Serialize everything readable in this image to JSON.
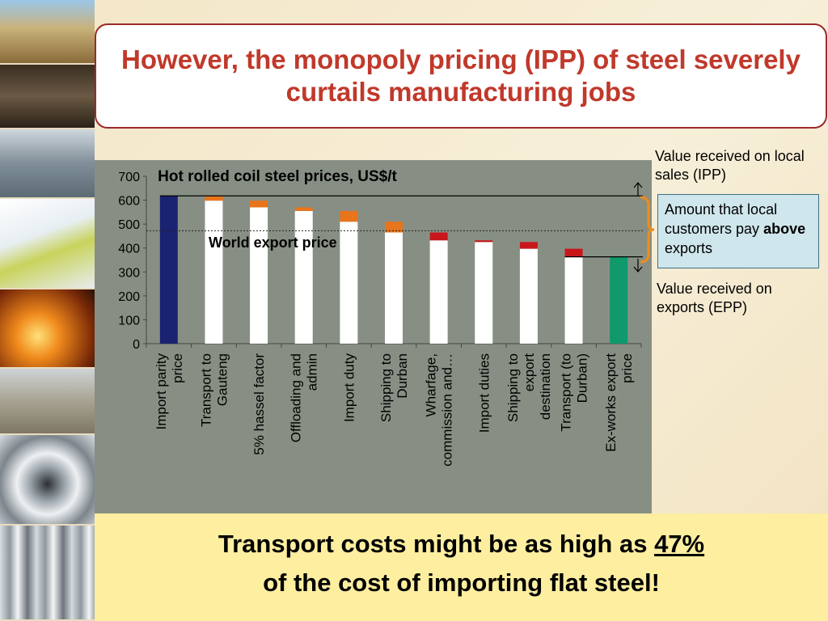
{
  "title": "However, the monopoly pricing (IPP) of steel severely curtails manufacturing jobs",
  "annotations": {
    "ipp_label": "Value received on local sales (IPP)",
    "amount_box": {
      "prefix": "Amount that local customers pay",
      "emphasis": "above",
      "suffix": "exports"
    },
    "epp_label": "Value received on exports (EPP)"
  },
  "callout": {
    "line1_prefix": "Transport costs might be as high as",
    "line1_percent": "47%",
    "line2": "of the cost of importing flat steel!"
  },
  "chart_data": {
    "type": "bar",
    "title": "Hot rolled coil steel prices, US$/t",
    "ylim": [
      0,
      700
    ],
    "yticks": [
      0,
      100,
      200,
      300,
      400,
      500,
      600,
      700
    ],
    "categories": [
      "Import parity price",
      "Transport to Gauteng",
      "5% hassel factor",
      "Offloading and admin",
      "Import duty",
      "Shipping to Durban",
      "Wharfage, commission and…",
      "Import duties",
      "Shipping to export destination",
      "Transport  (to Durban)",
      "Ex-works export price"
    ],
    "bars": [
      {
        "base": 0,
        "value": 618,
        "kind": "total"
      },
      {
        "base": 598,
        "value": 20,
        "kind": "increase"
      },
      {
        "base": 570,
        "value": 28,
        "kind": "increase"
      },
      {
        "base": 555,
        "value": 15,
        "kind": "increase"
      },
      {
        "base": 510,
        "value": 45,
        "kind": "increase"
      },
      {
        "base": 465,
        "value": 45,
        "kind": "increase"
      },
      {
        "base": 432,
        "value": 33,
        "kind": "decrease"
      },
      {
        "base": 425,
        "value": 7,
        "kind": "decrease"
      },
      {
        "base": 397,
        "value": 28,
        "kind": "decrease"
      },
      {
        "base": 363,
        "value": 34,
        "kind": "decrease"
      },
      {
        "base": 0,
        "value": 363,
        "kind": "final"
      }
    ],
    "reference_line": {
      "label": "World export price",
      "value": 472
    },
    "ipp_level": 618,
    "epp_level": 363,
    "colors": {
      "total": "#1a2272",
      "final": "#10996b",
      "base": "#ffffff",
      "increase": "#e8741c",
      "decrease": "#c8161b",
      "panel": "#878f84"
    },
    "grid": false
  }
}
